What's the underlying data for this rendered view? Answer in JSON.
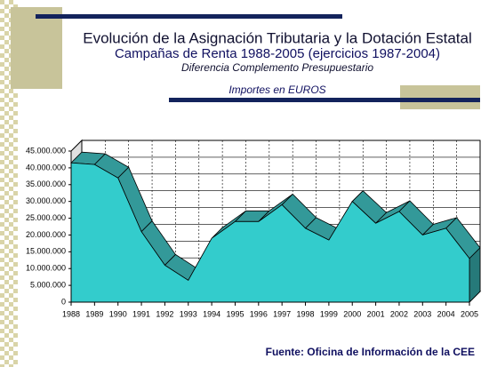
{
  "chart_data": {
    "type": "area",
    "title": "Evolución de la Asignación Tributaria y la Dotación Estatal",
    "subtitle": "Campañas de Renta 1988-2005 (ejercicios 1987-2004)",
    "description": "Diferencia Complemento Presupuestario",
    "units": "Importes en EUROS",
    "source": "Fuente: Oficina de Información de la CEE",
    "categories": [
      "1988",
      "1989",
      "1990",
      "1991",
      "1992",
      "1993",
      "1994",
      "1995",
      "1996",
      "1997",
      "1998",
      "1999",
      "2000",
      "2001",
      "2002",
      "2003",
      "2004",
      "2005"
    ],
    "values": [
      41500000,
      41000000,
      37000000,
      21000000,
      11000000,
      6500000,
      19000000,
      24000000,
      24000000,
      29000000,
      22000000,
      18500000,
      30000000,
      23500000,
      27000000,
      20000000,
      22000000,
      13000000
    ],
    "color": "#33cccc",
    "ylim": [
      0,
      45000000
    ],
    "yticks": [
      0,
      {
        "value": 5000000,
        "label": "5.000.000"
      },
      {
        "value": 10000000,
        "label": "10.000.000"
      },
      {
        "value": 15000000,
        "label": "15.000.000"
      },
      {
        "value": 20000000,
        "label": "20.000.000"
      },
      {
        "value": 25000000,
        "label": "25.000.000"
      },
      {
        "value": 30000000,
        "label": "30.000.000"
      },
      {
        "value": 35000000,
        "label": "35.000.000"
      },
      {
        "value": 40000000,
        "label": "40.000.000"
      },
      {
        "value": 45000000,
        "label": "45.000.000"
      }
    ],
    "grid": true
  }
}
